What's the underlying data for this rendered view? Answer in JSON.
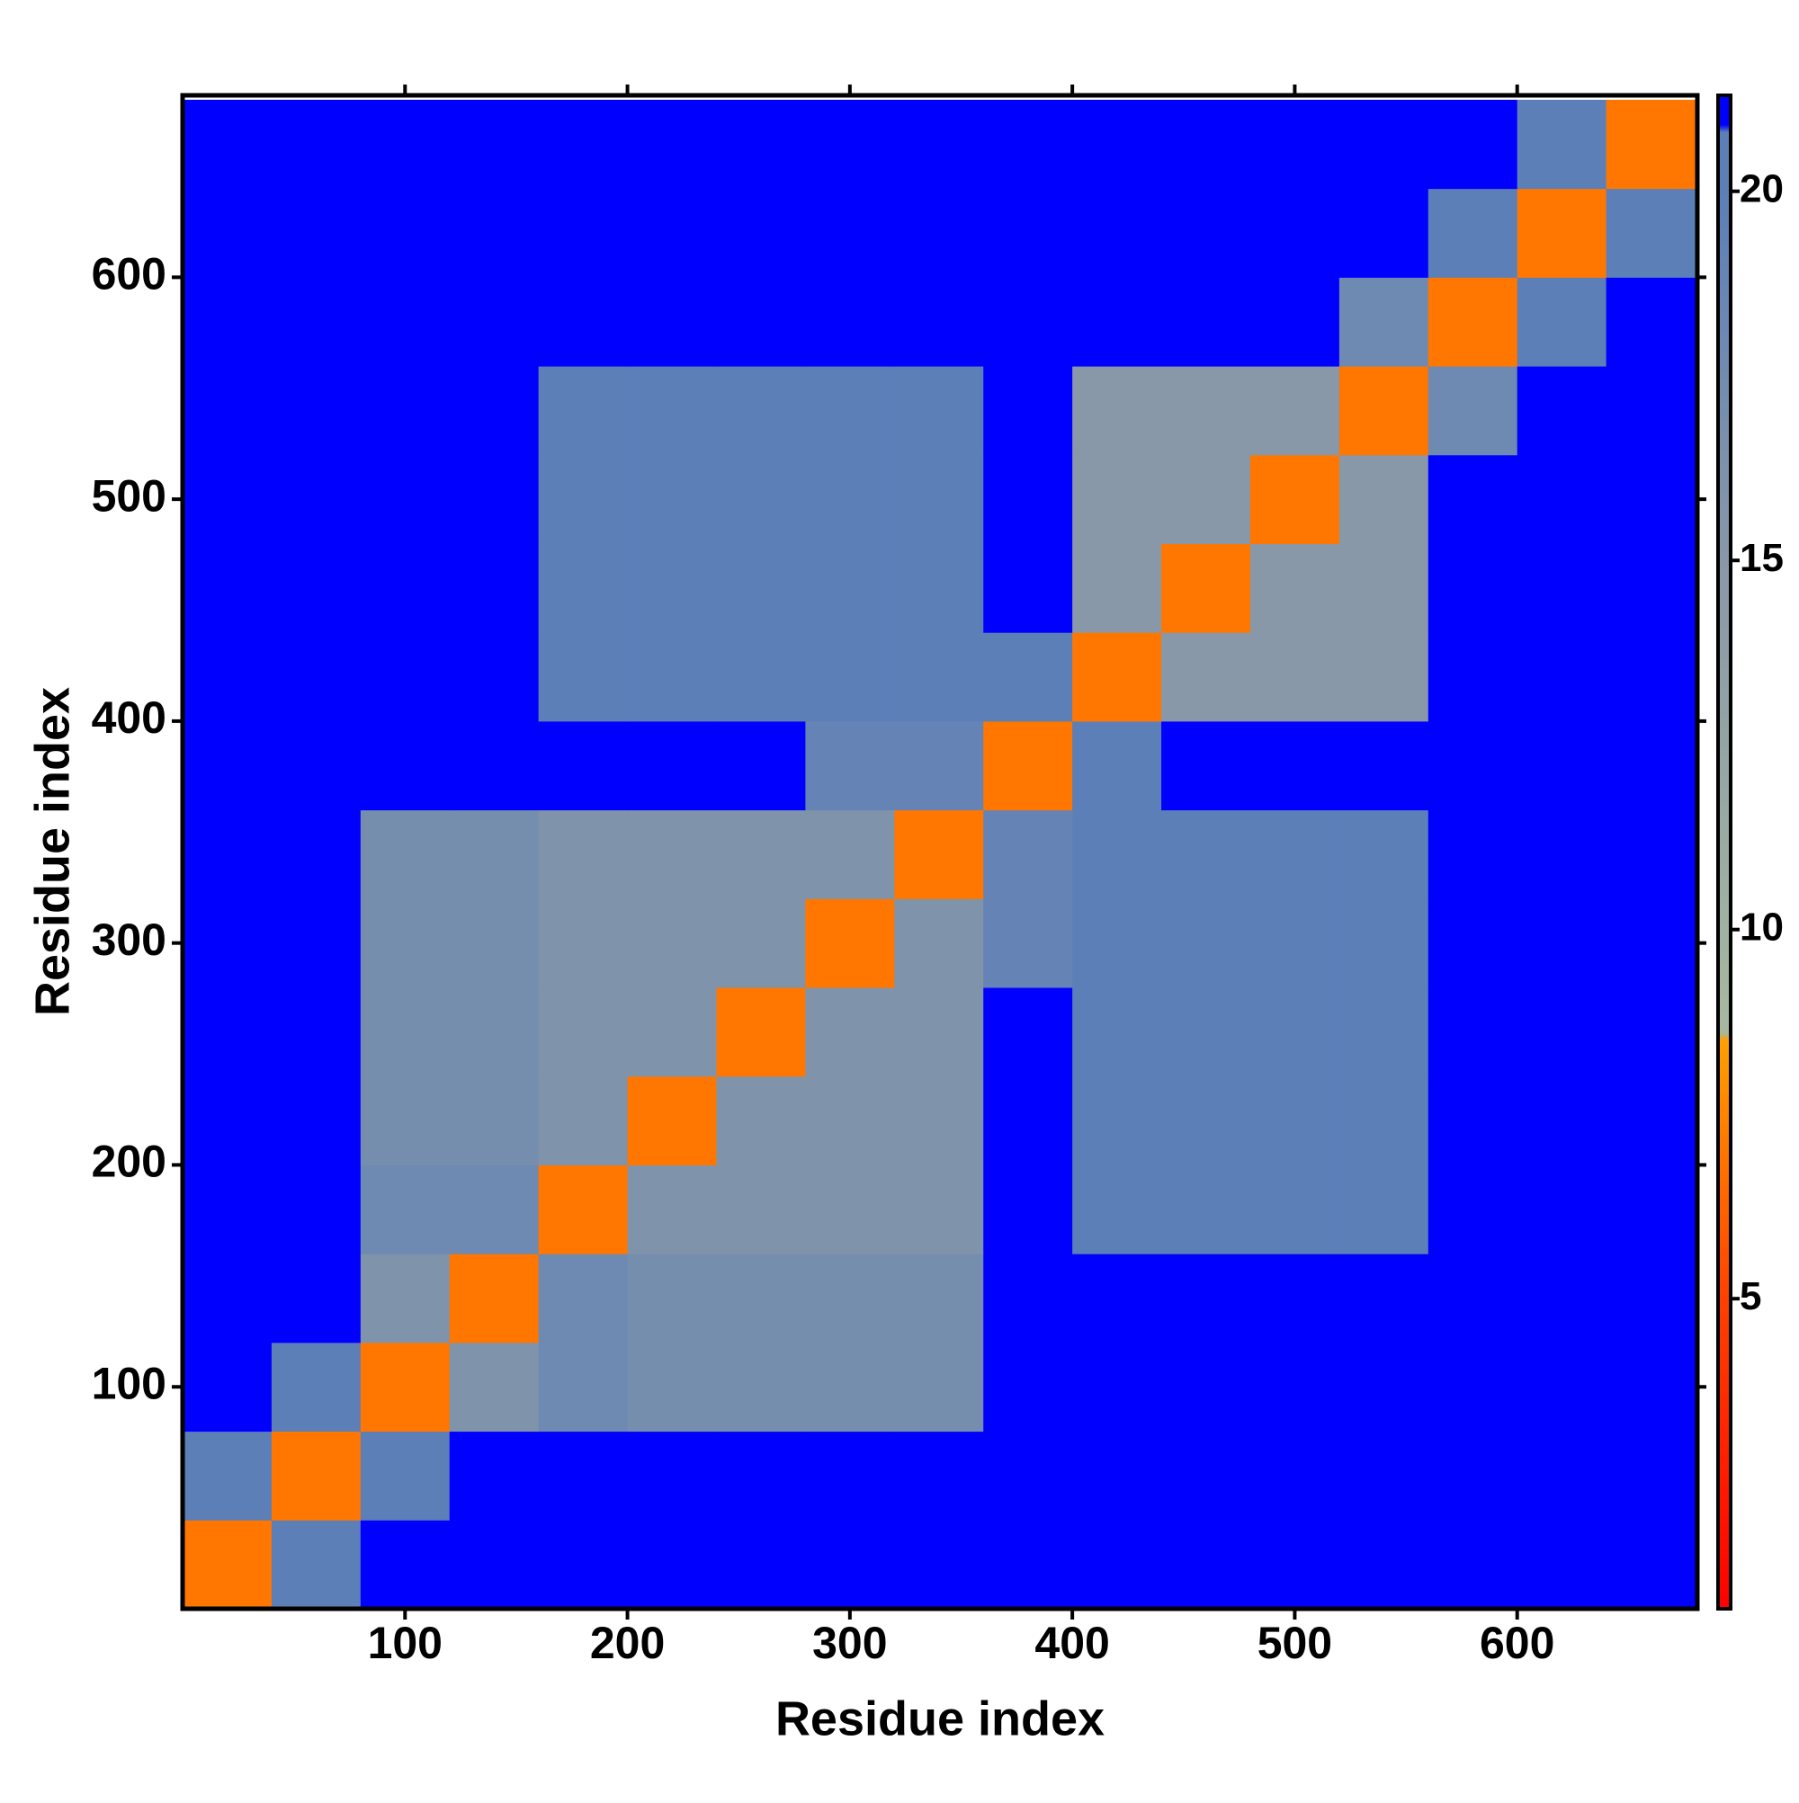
{
  "chart_data": {
    "type": "heatmap",
    "xlabel": "Residue index",
    "ylabel": "Residue index",
    "xbins": [
      0,
      40,
      80,
      120,
      160,
      200,
      240,
      280,
      320,
      360,
      400,
      440,
      480,
      520,
      560,
      600,
      640,
      680
    ],
    "ybins": [
      0,
      40,
      80,
      120,
      160,
      200,
      240,
      280,
      320,
      360,
      400,
      440,
      480,
      520,
      560,
      600,
      640,
      680
    ],
    "z": [
      [
        7,
        20,
        21,
        21,
        21,
        21,
        21,
        21,
        21,
        21,
        21,
        21,
        21,
        21,
        21,
        21,
        21
      ],
      [
        20,
        7,
        20,
        21,
        21,
        21,
        21,
        21,
        21,
        21,
        21,
        21,
        21,
        21,
        21,
        21,
        21
      ],
      [
        21,
        20,
        7,
        16,
        18,
        17,
        17,
        17,
        17,
        21,
        21,
        21,
        21,
        21,
        21,
        21,
        21
      ],
      [
        21,
        21,
        16,
        7,
        18,
        17,
        17,
        17,
        17,
        21,
        21,
        21,
        21,
        21,
        21,
        21,
        21
      ],
      [
        21,
        21,
        18,
        18,
        7,
        16,
        16,
        16,
        16,
        21,
        20,
        20,
        20,
        20,
        21,
        21,
        21
      ],
      [
        21,
        21,
        17,
        17,
        16,
        7,
        16,
        16,
        16,
        21,
        20,
        20,
        20,
        20,
        21,
        21,
        21
      ],
      [
        21,
        21,
        17,
        17,
        16,
        16,
        7,
        16,
        16,
        21,
        20,
        20,
        20,
        20,
        21,
        21,
        21
      ],
      [
        21,
        21,
        17,
        17,
        16,
        16,
        16,
        7,
        16,
        19,
        20,
        20,
        20,
        20,
        21,
        21,
        21
      ],
      [
        21,
        21,
        17,
        17,
        16,
        16,
        16,
        16,
        7,
        19,
        20,
        20,
        20,
        20,
        21,
        21,
        21
      ],
      [
        21,
        21,
        21,
        21,
        21,
        21,
        21,
        19,
        19,
        7,
        20,
        21,
        21,
        21,
        21,
        21,
        21
      ],
      [
        21,
        21,
        21,
        21,
        20,
        20,
        20,
        20,
        20,
        20,
        7,
        15,
        15,
        15,
        21,
        21,
        21
      ],
      [
        21,
        21,
        21,
        21,
        20,
        20,
        20,
        20,
        20,
        21,
        15,
        7,
        15,
        15,
        21,
        21,
        21
      ],
      [
        21,
        21,
        21,
        21,
        20,
        20,
        20,
        20,
        20,
        21,
        15,
        15,
        7,
        15,
        21,
        21,
        21
      ],
      [
        21,
        21,
        21,
        21,
        20,
        20,
        20,
        20,
        20,
        21,
        15,
        15,
        15,
        7,
        18,
        21,
        21
      ],
      [
        21,
        21,
        21,
        21,
        21,
        21,
        21,
        21,
        21,
        21,
        21,
        21,
        21,
        18,
        7,
        20,
        21
      ],
      [
        21,
        21,
        21,
        21,
        21,
        21,
        21,
        21,
        21,
        21,
        21,
        21,
        21,
        21,
        20,
        7,
        20
      ],
      [
        21,
        21,
        21,
        21,
        21,
        21,
        21,
        21,
        21,
        21,
        21,
        21,
        21,
        21,
        21,
        20,
        7
      ]
    ],
    "xlim": [
      0,
      681
    ],
    "ylim": [
      0,
      682
    ],
    "xticks": [
      100,
      200,
      300,
      400,
      500,
      600
    ],
    "yticks": [
      100,
      200,
      300,
      400,
      500,
      600
    ],
    "mirror_ticks": true,
    "colorbar": {
      "clim": [
        0.8,
        21.3
      ],
      "ticks": [
        5,
        10,
        15,
        20
      ],
      "colorscale": [
        [
          0.8,
          "#ff0000"
        ],
        [
          5,
          "#ff4000"
        ],
        [
          8.5,
          "#ffa000"
        ],
        [
          8.6,
          "#a8b8a0"
        ],
        [
          15,
          "#8898a8"
        ],
        [
          20,
          "#5c7fb8"
        ],
        [
          20.8,
          "#5c7fb8"
        ],
        [
          20.9,
          "#0000ff"
        ],
        [
          21.3,
          "#0000ff"
        ]
      ]
    }
  }
}
